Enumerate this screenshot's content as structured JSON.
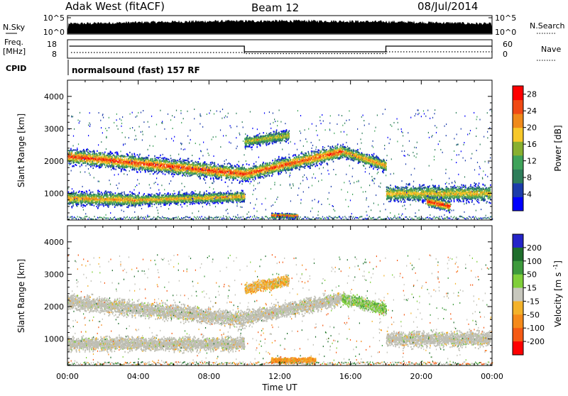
{
  "header": {
    "station": "Adak West (fitACF)",
    "beam": "Beam 12",
    "date": "08/Jul/2014"
  },
  "meta_rows": {
    "nsky_label": "N.Sky",
    "nsky_ticks": [
      "10^5",
      "10^0"
    ],
    "nsearch_label": "N.Search",
    "nsearch_ticks": [
      "10^5",
      "10^0"
    ],
    "freq_label_1": "Freq.",
    "freq_label_2": "[MHz]",
    "freq_ticks": [
      18,
      8
    ],
    "nave_label": "Nave",
    "nave_ticks": [
      60,
      0
    ],
    "cpid_label": "CPID",
    "cpid_value": "normalsound (fast) 157 RF"
  },
  "colors": {
    "power_scale": [
      "#0000ff",
      "#1c3caa",
      "#2e7d5a",
      "#3fa35a",
      "#88b030",
      "#f7c82a",
      "#f08a1a",
      "#f04a14",
      "#ff0000"
    ],
    "velocity_scale": [
      "#2424c8",
      "#1e6e2c",
      "#3d9a3c",
      "#80cf3a",
      "#c7c7bd",
      "#f3b22a",
      "#f58a1a",
      "#f55a14",
      "#ff0000"
    ],
    "ground_scatter": "#bebeb4"
  },
  "chart_data": [
    {
      "type": "heatmap",
      "name": "power",
      "ylabel": "Slant Range [km]",
      "ylim": [
        180,
        4500
      ],
      "yticks": [
        1000,
        2000,
        3000,
        4000
      ],
      "xlim": [
        0,
        24
      ],
      "colorbar_label": "Power [dB]",
      "colorbar_ticks": [
        4,
        8,
        12,
        16,
        20,
        24,
        28
      ],
      "colorbar_range": [
        0,
        30
      ],
      "bands": [
        {
          "t": [
            0.0,
            10.0
          ],
          "range_start": [
            2150,
            1600
          ],
          "range_end": [
            2150,
            1450
          ],
          "width": 230,
          "peak": 27
        },
        {
          "t": [
            0.0,
            4.0
          ],
          "range_start": [
            850,
            800
          ],
          "range_end": [
            850,
            800
          ],
          "width": 200,
          "peak": 22
        },
        {
          "t": [
            4.0,
            10.0
          ],
          "range_start": [
            800,
            900
          ],
          "range_end": [
            800,
            900
          ],
          "width": 160,
          "peak": 21
        },
        {
          "t": [
            10.0,
            15.5
          ],
          "range_start": [
            1600,
            2300
          ],
          "range_end": [
            1600,
            2300
          ],
          "width": 220,
          "peak": 26
        },
        {
          "t": [
            15.5,
            18.0
          ],
          "range_start": [
            2300,
            1850
          ],
          "range_end": [
            2300,
            1850
          ],
          "width": 180,
          "peak": 22
        },
        {
          "t": [
            10.0,
            12.5
          ],
          "range_start": [
            2600,
            2800
          ],
          "range_end": [
            2600,
            2800
          ],
          "width": 160,
          "peak": 18
        },
        {
          "t": [
            18.0,
            23.9
          ],
          "range_start": [
            1000,
            1000
          ],
          "range_end": [
            1000,
            1000
          ],
          "width": 230,
          "peak": 20
        },
        {
          "t": [
            20.3,
            21.6
          ],
          "range_start": [
            750,
            600
          ],
          "range_end": [
            750,
            600
          ],
          "width": 160,
          "peak": 29
        },
        {
          "t": [
            11.5,
            13.0
          ],
          "range_start": [
            320,
            300
          ],
          "range_end": [
            320,
            300
          ],
          "width": 70,
          "peak": 29
        }
      ]
    },
    {
      "type": "heatmap",
      "name": "velocity",
      "ylabel": "Slant Range [km]",
      "xlabel": "Time UT",
      "ylim": [
        180,
        4500
      ],
      "yticks": [
        1000,
        2000,
        3000,
        4000
      ],
      "xlim": [
        0,
        24
      ],
      "xticks": [
        "00:00",
        "04:00",
        "08:00",
        "12:00",
        "16:00",
        "20:00",
        "00:00"
      ],
      "colorbar_label": "Velocity [m s^-1]",
      "colorbar_ticks": [
        200,
        100,
        50,
        15,
        -15,
        -50,
        -100,
        -200
      ],
      "bands": [
        {
          "t": [
            0.0,
            10.0
          ],
          "range_start": [
            2150,
            1600
          ],
          "range_end": [
            2150,
            1450
          ],
          "width": 230,
          "velocity": 0,
          "ground": true
        },
        {
          "t": [
            0.0,
            10.0
          ],
          "range_start": [
            850,
            850
          ],
          "range_end": [
            850,
            850
          ],
          "width": 200,
          "velocity": 0,
          "ground": true
        },
        {
          "t": [
            10.0,
            15.5
          ],
          "range_start": [
            1650,
            2250
          ],
          "range_end": [
            1650,
            2250
          ],
          "width": 210,
          "velocity": 0,
          "ground": true
        },
        {
          "t": [
            15.5,
            18.0
          ],
          "range_start": [
            2250,
            1900
          ],
          "range_end": [
            2250,
            1900
          ],
          "width": 170,
          "velocity": 30,
          "ground": false
        },
        {
          "t": [
            18.0,
            23.9
          ],
          "range_start": [
            1000,
            1000
          ],
          "range_end": [
            1000,
            1000
          ],
          "width": 220,
          "velocity": 0,
          "ground": true
        },
        {
          "t": [
            10.0,
            12.5
          ],
          "range_start": [
            2550,
            2800
          ],
          "range_end": [
            2550,
            2800
          ],
          "width": 150,
          "velocity": -30,
          "ground": false
        },
        {
          "t": [
            11.5,
            14.0
          ],
          "range_start": [
            330,
            330
          ],
          "range_end": [
            330,
            330
          ],
          "width": 80,
          "velocity": -60,
          "ground": false
        }
      ]
    }
  ]
}
